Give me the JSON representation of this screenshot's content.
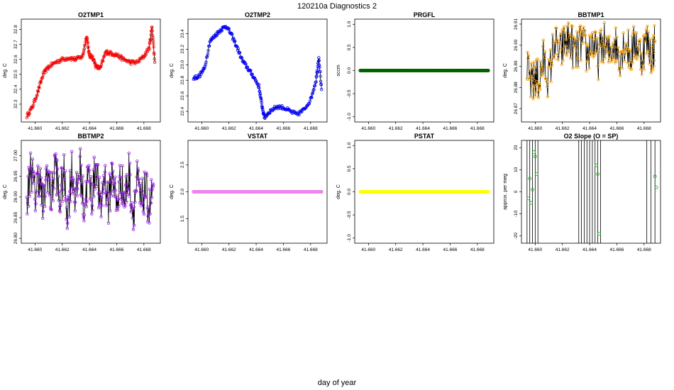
{
  "figure": {
    "title": "120210a   Diagnostics 2",
    "xlabel": "day of year"
  },
  "chart_data": [
    {
      "type": "line",
      "title": "O2TMP1",
      "ylabel": "deg. C",
      "color": "#ff0000",
      "xlim": [
        41.6592,
        41.669
      ],
      "ylim": [
        32.2,
        32.85
      ],
      "xticks": [
        "41.660",
        "41.662",
        "41.664",
        "41.666",
        "41.668"
      ],
      "yticks": [
        "32.3",
        "32.4",
        "32.5",
        "32.6",
        "32.7",
        "32.8"
      ],
      "x": [
        41.6594,
        41.6598,
        41.6602,
        41.6606,
        41.661,
        41.6615,
        41.662,
        41.6625,
        41.663,
        41.6635,
        41.6638,
        41.664,
        41.6642,
        41.6645,
        41.6648,
        41.6652,
        41.6656,
        41.666,
        41.6665,
        41.667,
        41.6675,
        41.668,
        41.6684,
        41.6686,
        41.6688
      ],
      "y": [
        32.22,
        32.28,
        32.38,
        32.5,
        32.55,
        32.58,
        32.6,
        32.61,
        32.6,
        32.62,
        32.76,
        32.62,
        32.62,
        32.55,
        32.54,
        32.65,
        32.64,
        32.63,
        32.6,
        32.58,
        32.58,
        32.62,
        32.68,
        32.82,
        32.58
      ]
    },
    {
      "type": "line",
      "title": "O2TMP2",
      "ylabel": "deg. C",
      "color": "#0000ff",
      "xlim": [
        41.6592,
        41.669
      ],
      "ylim": [
        22.3,
        23.55
      ],
      "xticks": [
        "41.660",
        "41.662",
        "41.664",
        "41.666",
        "41.668"
      ],
      "yticks": [
        "22.4",
        "22.6",
        "22.8",
        "23.0",
        "23.2",
        "23.4"
      ],
      "x": [
        41.6594,
        41.6598,
        41.6602,
        41.6606,
        41.661,
        41.6614,
        41.6618,
        41.6622,
        41.6626,
        41.663,
        41.6634,
        41.6638,
        41.6642,
        41.6644,
        41.6646,
        41.665,
        41.6655,
        41.666,
        41.6665,
        41.667,
        41.6675,
        41.668,
        41.6684,
        41.6686,
        41.6688
      ],
      "y": [
        22.83,
        22.85,
        22.95,
        23.3,
        23.38,
        23.45,
        23.5,
        23.38,
        23.22,
        23.05,
        22.95,
        22.85,
        22.72,
        22.5,
        22.32,
        22.4,
        22.46,
        22.45,
        22.4,
        22.36,
        22.42,
        22.55,
        22.8,
        23.1,
        22.68
      ]
    },
    {
      "type": "line",
      "title": "PRGFL",
      "ylabel": "sccm",
      "color": "#006400",
      "xlim": [
        41.6592,
        41.669
      ],
      "ylim": [
        -1.05,
        1.05
      ],
      "xticks": [
        "41.660",
        "41.662",
        "41.664",
        "41.666",
        "41.668"
      ],
      "yticks": [
        "-1.0",
        "-0.5",
        "0.0",
        "0.5",
        "1.0"
      ],
      "x": [
        41.6594,
        41.6688
      ],
      "y": [
        0.0,
        0.0
      ]
    },
    {
      "type": "line",
      "title": "BBTMP1",
      "ylabel": "deg. C",
      "color": "#ffa500",
      "xlim": [
        41.6592,
        41.669
      ],
      "ylim": [
        26.865,
        26.911
      ],
      "xticks": [
        "41.660",
        "41.662",
        "41.664",
        "41.666",
        "41.668"
      ],
      "yticks": [
        "26.87",
        "26.88",
        "26.89",
        "26.90",
        "26.91"
      ],
      "x": [
        41.6594,
        41.6598,
        41.66,
        41.6603,
        41.6606,
        41.661,
        41.6614,
        41.6618,
        41.6622,
        41.6626,
        41.663,
        41.6634,
        41.6638,
        41.6642,
        41.6646,
        41.665,
        41.6654,
        41.6658,
        41.6662,
        41.6666,
        41.667,
        41.6674,
        41.6678,
        41.6682,
        41.6686,
        41.6688
      ],
      "y": [
        26.888,
        26.88,
        26.885,
        26.883,
        26.893,
        26.884,
        26.902,
        26.895,
        26.902,
        26.902,
        26.895,
        26.902,
        26.895,
        26.902,
        26.893,
        26.902,
        26.895,
        26.902,
        26.895,
        26.902,
        26.895,
        26.902,
        26.895,
        26.902,
        26.895,
        26.902
      ]
    },
    {
      "type": "line",
      "title": "BBTMP2",
      "ylabel": "deg. C",
      "color": "#a020f0",
      "xlim": [
        41.6592,
        41.669
      ],
      "ylim": [
        26.795,
        27.03
      ],
      "xticks": [
        "41.660",
        "41.662",
        "41.664",
        "41.666",
        "41.668"
      ],
      "yticks": [
        "26.80",
        "26.85",
        "26.90",
        "26.95",
        "27.00"
      ],
      "x": [
        41.6594,
        41.6597,
        41.66,
        41.6603,
        41.6606,
        41.6609,
        41.6612,
        41.6615,
        41.6618,
        41.6621,
        41.6624,
        41.6627,
        41.663,
        41.6633,
        41.6636,
        41.6639,
        41.6642,
        41.6645,
        41.6648,
        41.6651,
        41.6654,
        41.6657,
        41.666,
        41.6663,
        41.6666,
        41.6669,
        41.6672,
        41.6675,
        41.6678,
        41.6681,
        41.6684,
        41.6687
      ],
      "y": [
        26.88,
        26.98,
        26.9,
        26.96,
        26.87,
        26.97,
        26.89,
        26.99,
        26.88,
        26.96,
        26.86,
        26.97,
        26.89,
        26.98,
        26.87,
        26.95,
        26.9,
        26.99,
        26.86,
        26.96,
        26.88,
        26.97,
        26.87,
        26.95,
        26.89,
        26.96,
        26.86,
        26.94,
        26.88,
        26.92,
        26.87,
        26.93
      ]
    },
    {
      "type": "line",
      "title": "VSTAT",
      "ylabel": "deg. C",
      "color": "#ee82ee",
      "xlim": [
        41.6592,
        41.669
      ],
      "ylim": [
        1.1,
        2.9
      ],
      "xticks": [
        "41.660",
        "41.662",
        "41.664",
        "41.666",
        "41.668"
      ],
      "yticks": [
        "1.5",
        "2.0",
        "2.5"
      ],
      "x": [
        41.6594,
        41.6688
      ],
      "y": [
        2.0,
        2.0
      ]
    },
    {
      "type": "line",
      "title": "PSTAT",
      "ylabel": "deg. C",
      "color": "#ffff00",
      "xlim": [
        41.6592,
        41.669
      ],
      "ylim": [
        -1.05,
        1.05
      ],
      "xticks": [
        "41.660",
        "41.662",
        "41.664",
        "41.666",
        "41.668"
      ],
      "yticks": [
        "-1.0",
        "-0.5",
        "0.0",
        "0.5",
        "1.0"
      ],
      "x": [
        41.6594,
        41.6688
      ],
      "y": [
        0.0,
        0.0
      ]
    },
    {
      "type": "scatter",
      "title": "O2 Slope (O = SP)",
      "ylabel": "approx. per meg",
      "color": "#00aa00",
      "xlim": [
        41.6592,
        41.669
      ],
      "ylim": [
        -22,
        22
      ],
      "xticks": [
        "41.660",
        "41.662",
        "41.664",
        "41.666",
        "41.668"
      ],
      "yticks": [
        "-20",
        "-10",
        "0",
        "10",
        "20"
      ],
      "x": [
        41.6595,
        41.6596,
        41.6597,
        41.6598,
        41.6599,
        41.66,
        41.6601,
        41.6645,
        41.6646,
        41.6647,
        41.6688,
        41.6689
      ],
      "y": [
        -3,
        6,
        -5,
        1,
        18,
        16,
        8,
        12,
        8,
        -19,
        7,
        2
      ],
      "vlines": [
        41.6594,
        41.6596,
        41.6598,
        41.66,
        41.6602,
        41.6632,
        41.6634,
        41.6636,
        41.6638,
        41.664,
        41.6642,
        41.6644,
        41.6646,
        41.6648,
        41.6682,
        41.6685,
        41.6688
      ]
    }
  ]
}
